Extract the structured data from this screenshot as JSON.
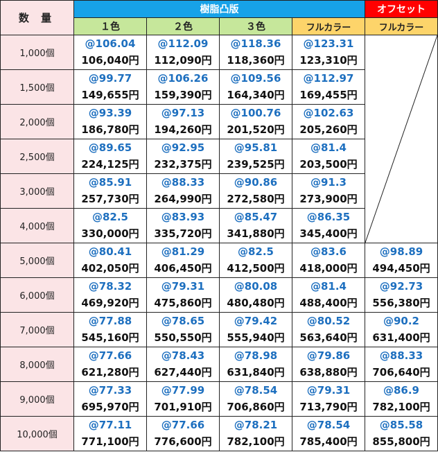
{
  "header": {
    "quantity_label": "数 量",
    "resin_label": "樹脂凸版",
    "offset_label": "オフセット",
    "columns": [
      "１色",
      "２色",
      "３色",
      "フルカラー",
      "フルカラー"
    ]
  },
  "rows": [
    {
      "qty": "1,000個",
      "cells": [
        [
          "@106.04",
          "106,040円"
        ],
        [
          "@112.09",
          "112,090円"
        ],
        [
          "@118.36",
          "118,360円"
        ],
        [
          "@123.31",
          "123,310円"
        ],
        null
      ]
    },
    {
      "qty": "1,500個",
      "cells": [
        [
          "@99.77",
          "149,655円"
        ],
        [
          "@106.26",
          "159,390円"
        ],
        [
          "@109.56",
          "164,340円"
        ],
        [
          "@112.97",
          "169,455円"
        ],
        null
      ]
    },
    {
      "qty": "2,000個",
      "cells": [
        [
          "@93.39",
          "186,780円"
        ],
        [
          "@97.13",
          "194,260円"
        ],
        [
          "@100.76",
          "201,520円"
        ],
        [
          "@102.63",
          "205,260円"
        ],
        null
      ]
    },
    {
      "qty": "2,500個",
      "cells": [
        [
          "@89.65",
          "224,125円"
        ],
        [
          "@92.95",
          "232,375円"
        ],
        [
          "@95.81",
          "239,525円"
        ],
        [
          "@81.4",
          "203,500円"
        ],
        null
      ]
    },
    {
      "qty": "3,000個",
      "cells": [
        [
          "@85.91",
          "257,730円"
        ],
        [
          "@88.33",
          "264,990円"
        ],
        [
          "@90.86",
          "272,580円"
        ],
        [
          "@91.3",
          "273,900円"
        ],
        null
      ]
    },
    {
      "qty": "4,000個",
      "cells": [
        [
          "@82.5",
          "330,000円"
        ],
        [
          "@83.93",
          "335,720円"
        ],
        [
          "@85.47",
          "341,880円"
        ],
        [
          "@86.35",
          "345,400円"
        ],
        null
      ]
    },
    {
      "qty": "5,000個",
      "cells": [
        [
          "@80.41",
          "402,050円"
        ],
        [
          "@81.29",
          "406,450円"
        ],
        [
          "@82.5",
          "412,500円"
        ],
        [
          "@83.6",
          "418,000円"
        ],
        [
          "@98.89",
          "494,450円"
        ]
      ]
    },
    {
      "qty": "6,000個",
      "cells": [
        [
          "@78.32",
          "469,920円"
        ],
        [
          "@79.31",
          "475,860円"
        ],
        [
          "@80.08",
          "480,480円"
        ],
        [
          "@81.4",
          "488,400円"
        ],
        [
          "@92.73",
          "556,380円"
        ]
      ]
    },
    {
      "qty": "7,000個",
      "cells": [
        [
          "@77.88",
          "545,160円"
        ],
        [
          "@78.65",
          "550,550円"
        ],
        [
          "@79.42",
          "555,940円"
        ],
        [
          "@80.52",
          "563,640円"
        ],
        [
          "@90.2",
          "631,400円"
        ]
      ]
    },
    {
      "qty": "8,000個",
      "cells": [
        [
          "@77.66",
          "621,280円"
        ],
        [
          "@78.43",
          "627,440円"
        ],
        [
          "@78.98",
          "631,840円"
        ],
        [
          "@79.86",
          "638,880円"
        ],
        [
          "@88.33",
          "706,640円"
        ]
      ]
    },
    {
      "qty": "9,000個",
      "cells": [
        [
          "@77.33",
          "695,970円"
        ],
        [
          "@77.99",
          "701,910円"
        ],
        [
          "@78.54",
          "706,860円"
        ],
        [
          "@79.31",
          "713,790円"
        ],
        [
          "@86.9",
          "782,100円"
        ]
      ]
    },
    {
      "qty": "10,000個",
      "cells": [
        [
          "@77.11",
          "771,100円"
        ],
        [
          "@77.66",
          "776,600円"
        ],
        [
          "@78.21",
          "782,100円"
        ],
        [
          "@78.54",
          "785,400円"
        ],
        [
          "@85.58",
          "855,800円"
        ]
      ]
    }
  ],
  "colors": {
    "resin_header": "#17a2e8",
    "offset_header": "#ff0000",
    "color_subheader": "#c6e79b",
    "fullcolor_subheader": "#fdd46a",
    "quantity_bg": "#fbe4e6",
    "unit_price_text": "#1d6fbf"
  }
}
